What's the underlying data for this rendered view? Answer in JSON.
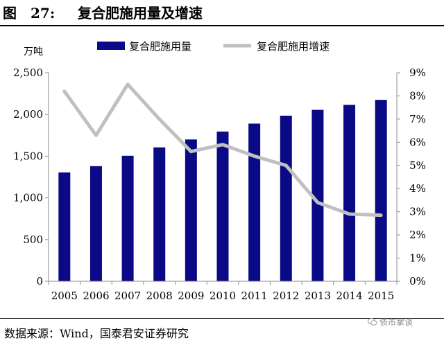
{
  "figure": {
    "number": "图　27:",
    "title": "复合肥施用量及增速"
  },
  "chart_data": {
    "type": "bar+line",
    "categories": [
      "2005",
      "2006",
      "2007",
      "2008",
      "2009",
      "2010",
      "2011",
      "2012",
      "2013",
      "2014",
      "2015"
    ],
    "series": [
      {
        "name": "复合肥施用量",
        "type": "bar",
        "axis": "left",
        "values": [
          1305,
          1380,
          1505,
          1605,
          1700,
          1795,
          1890,
          1985,
          2055,
          2115,
          2175
        ]
      },
      {
        "name": "复合肥施用增速",
        "type": "line",
        "axis": "right",
        "values": [
          8.2,
          6.3,
          8.5,
          7.0,
          5.6,
          5.9,
          5.4,
          5.0,
          3.4,
          2.9,
          2.85
        ]
      }
    ],
    "yunit": "万吨",
    "ylim": [
      0,
      2500
    ],
    "yticks": [
      "0",
      "500",
      "1,000",
      "1,500",
      "2,000",
      "2,500"
    ],
    "y2lim": [
      0,
      9
    ],
    "y2ticks": [
      "0%",
      "1%",
      "2%",
      "3%",
      "4%",
      "5%",
      "6%",
      "7%",
      "8%",
      "9%"
    ],
    "legend": "top",
    "grid": false,
    "colors": {
      "bar": "#0a0a86",
      "line": "#c0c0c0"
    }
  },
  "source": "数据来源：Wind，国泰君安证券研究",
  "watermark": "债市掌谈",
  "watermark_icon": "wechat-icon"
}
